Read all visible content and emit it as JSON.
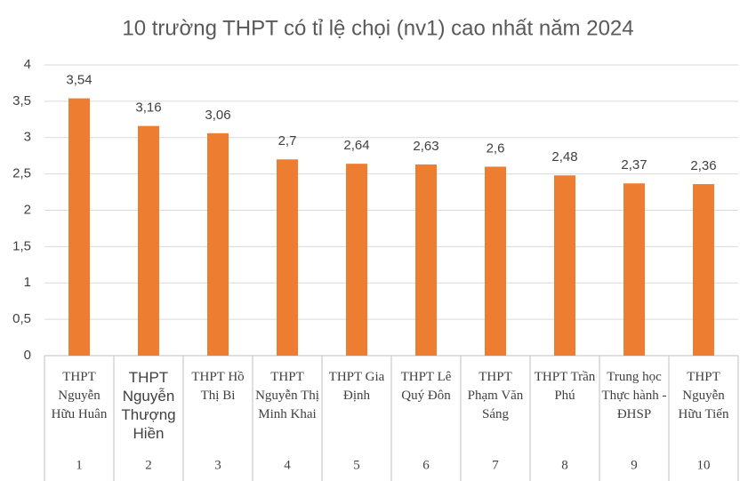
{
  "chart_data": {
    "type": "bar",
    "title": "10 trường THPT có tỉ lệ chọi (nv1) cao nhất năm 2024",
    "categories": [
      "THPT Nguyễn Hữu Huân",
      "THPT Nguyễn Thượng Hiền",
      "THPT Hồ Thị Bi",
      "THPT Nguyễn Thị Minh Khai",
      "THPT Gia Định",
      "THPT Lê Quý Đôn",
      "THPT Phạm Văn Sáng",
      "THPT Trần Phú",
      "Trung học Thực hành - ĐHSP",
      "THPT Nguyễn Hữu Tiến"
    ],
    "category_groups": [
      "1",
      "2",
      "3",
      "4",
      "5",
      "6",
      "7",
      "8",
      "9",
      "10"
    ],
    "values": [
      3.54,
      3.16,
      3.06,
      2.7,
      2.64,
      2.63,
      2.6,
      2.48,
      2.37,
      2.36
    ],
    "value_labels": [
      "3,54",
      "3,16",
      "3,06",
      "2,7",
      "2,64",
      "2,63",
      "2,6",
      "2,48",
      "2,37",
      "2,36"
    ],
    "color": "#ed7d31",
    "ylim": [
      0,
      4
    ],
    "yticks": [
      0,
      {
        "value": 0.5,
        "label": "0,5"
      },
      1,
      {
        "value": 1.5,
        "label": "1,5"
      },
      2,
      {
        "value": 2.5,
        "label": "2,5"
      },
      3,
      {
        "value": 3.5,
        "label": "3,5"
      },
      4
    ],
    "grid": true
  }
}
